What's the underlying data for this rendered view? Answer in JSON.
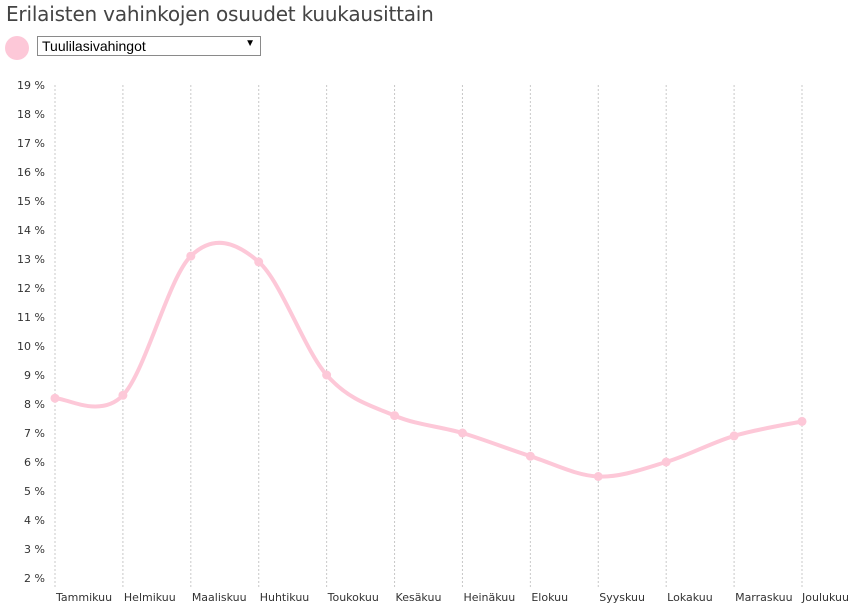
{
  "title": "Erilaisten vahinkojen osuudet kuukausittain",
  "selector": {
    "selected": "Tuulilasivahingot",
    "color": "#fdc8d8"
  },
  "chart_data": {
    "type": "line",
    "title": "Erilaisten vahinkojen osuudet kuukausittain",
    "categories": [
      "Tammikuu",
      "Helmikuu",
      "Maaliskuu",
      "Huhtikuu",
      "Toukokuu",
      "Kesäkuu",
      "Heinäkuu",
      "Elokuu",
      "Syyskuu",
      "Lokakuu",
      "Marraskuu",
      "Joulukuu"
    ],
    "series": [
      {
        "name": "Tuulilasivahingot",
        "color": "#fdc8d8",
        "values": [
          8.2,
          8.3,
          13.1,
          12.9,
          9.0,
          7.6,
          7.0,
          6.2,
          5.5,
          6.0,
          6.9,
          7.4
        ]
      }
    ],
    "yticks": [
      "2 %",
      "3 %",
      "4 %",
      "5 %",
      "6 %",
      "7 %",
      "8 %",
      "9 %",
      "10 %",
      "11 %",
      "12 %",
      "13 %",
      "14 %",
      "15 %",
      "16 %",
      "17 %",
      "18 %",
      "19 %"
    ],
    "ylim": [
      2,
      19
    ],
    "xlabel": "",
    "ylabel": "",
    "grid": "vertical-dotted"
  }
}
